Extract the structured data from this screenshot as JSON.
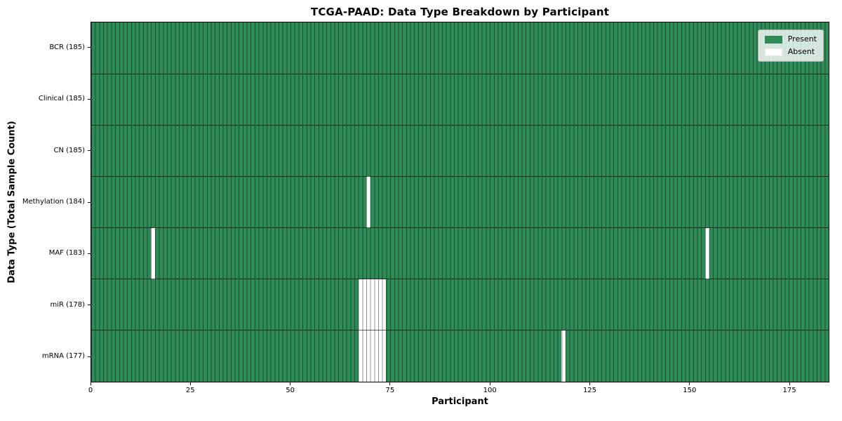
{
  "title": "TCGA-PAAD: Data Type Breakdown by Participant",
  "xlabel": "Participant",
  "ylabel": "Data Type (Total Sample Count)",
  "legend": {
    "present_label": "Present",
    "absent_label": "Absent",
    "position": "upper right"
  },
  "colors": {
    "present": "#2e8b57",
    "absent": "#ffffff",
    "bar_edge": "rgba(0,0,0,0.42)",
    "row_separator": "rgba(0,0,0,0.62)",
    "plot_border": "#000000"
  },
  "chart_data": {
    "type": "heatmap",
    "n_participants": 185,
    "xlim": [
      0,
      185
    ],
    "x_ticks": [
      0,
      25,
      50,
      75,
      100,
      125,
      150,
      175
    ],
    "grid": false,
    "legend_entries": [
      "Present",
      "Absent"
    ],
    "rows": [
      {
        "data_type": "BCR",
        "label": "BCR (185)",
        "total": 185,
        "absent_participants": []
      },
      {
        "data_type": "Clinical",
        "label": "Clinical (185)",
        "total": 185,
        "absent_participants": []
      },
      {
        "data_type": "CN",
        "label": "CN (185)",
        "total": 185,
        "absent_participants": []
      },
      {
        "data_type": "Methylation",
        "label": "Methylation (184)",
        "total": 184,
        "absent_participants": [
          69
        ]
      },
      {
        "data_type": "MAF",
        "label": "MAF (183)",
        "total": 183,
        "absent_participants": [
          15,
          154
        ]
      },
      {
        "data_type": "miR",
        "label": "miR (178)",
        "total": 178,
        "absent_participants": [
          67,
          68,
          69,
          70,
          71,
          72,
          73
        ]
      },
      {
        "data_type": "mRNA",
        "label": "mRNA (177)",
        "total": 177,
        "absent_participants": [
          67,
          68,
          69,
          70,
          71,
          72,
          73,
          118
        ]
      }
    ]
  }
}
